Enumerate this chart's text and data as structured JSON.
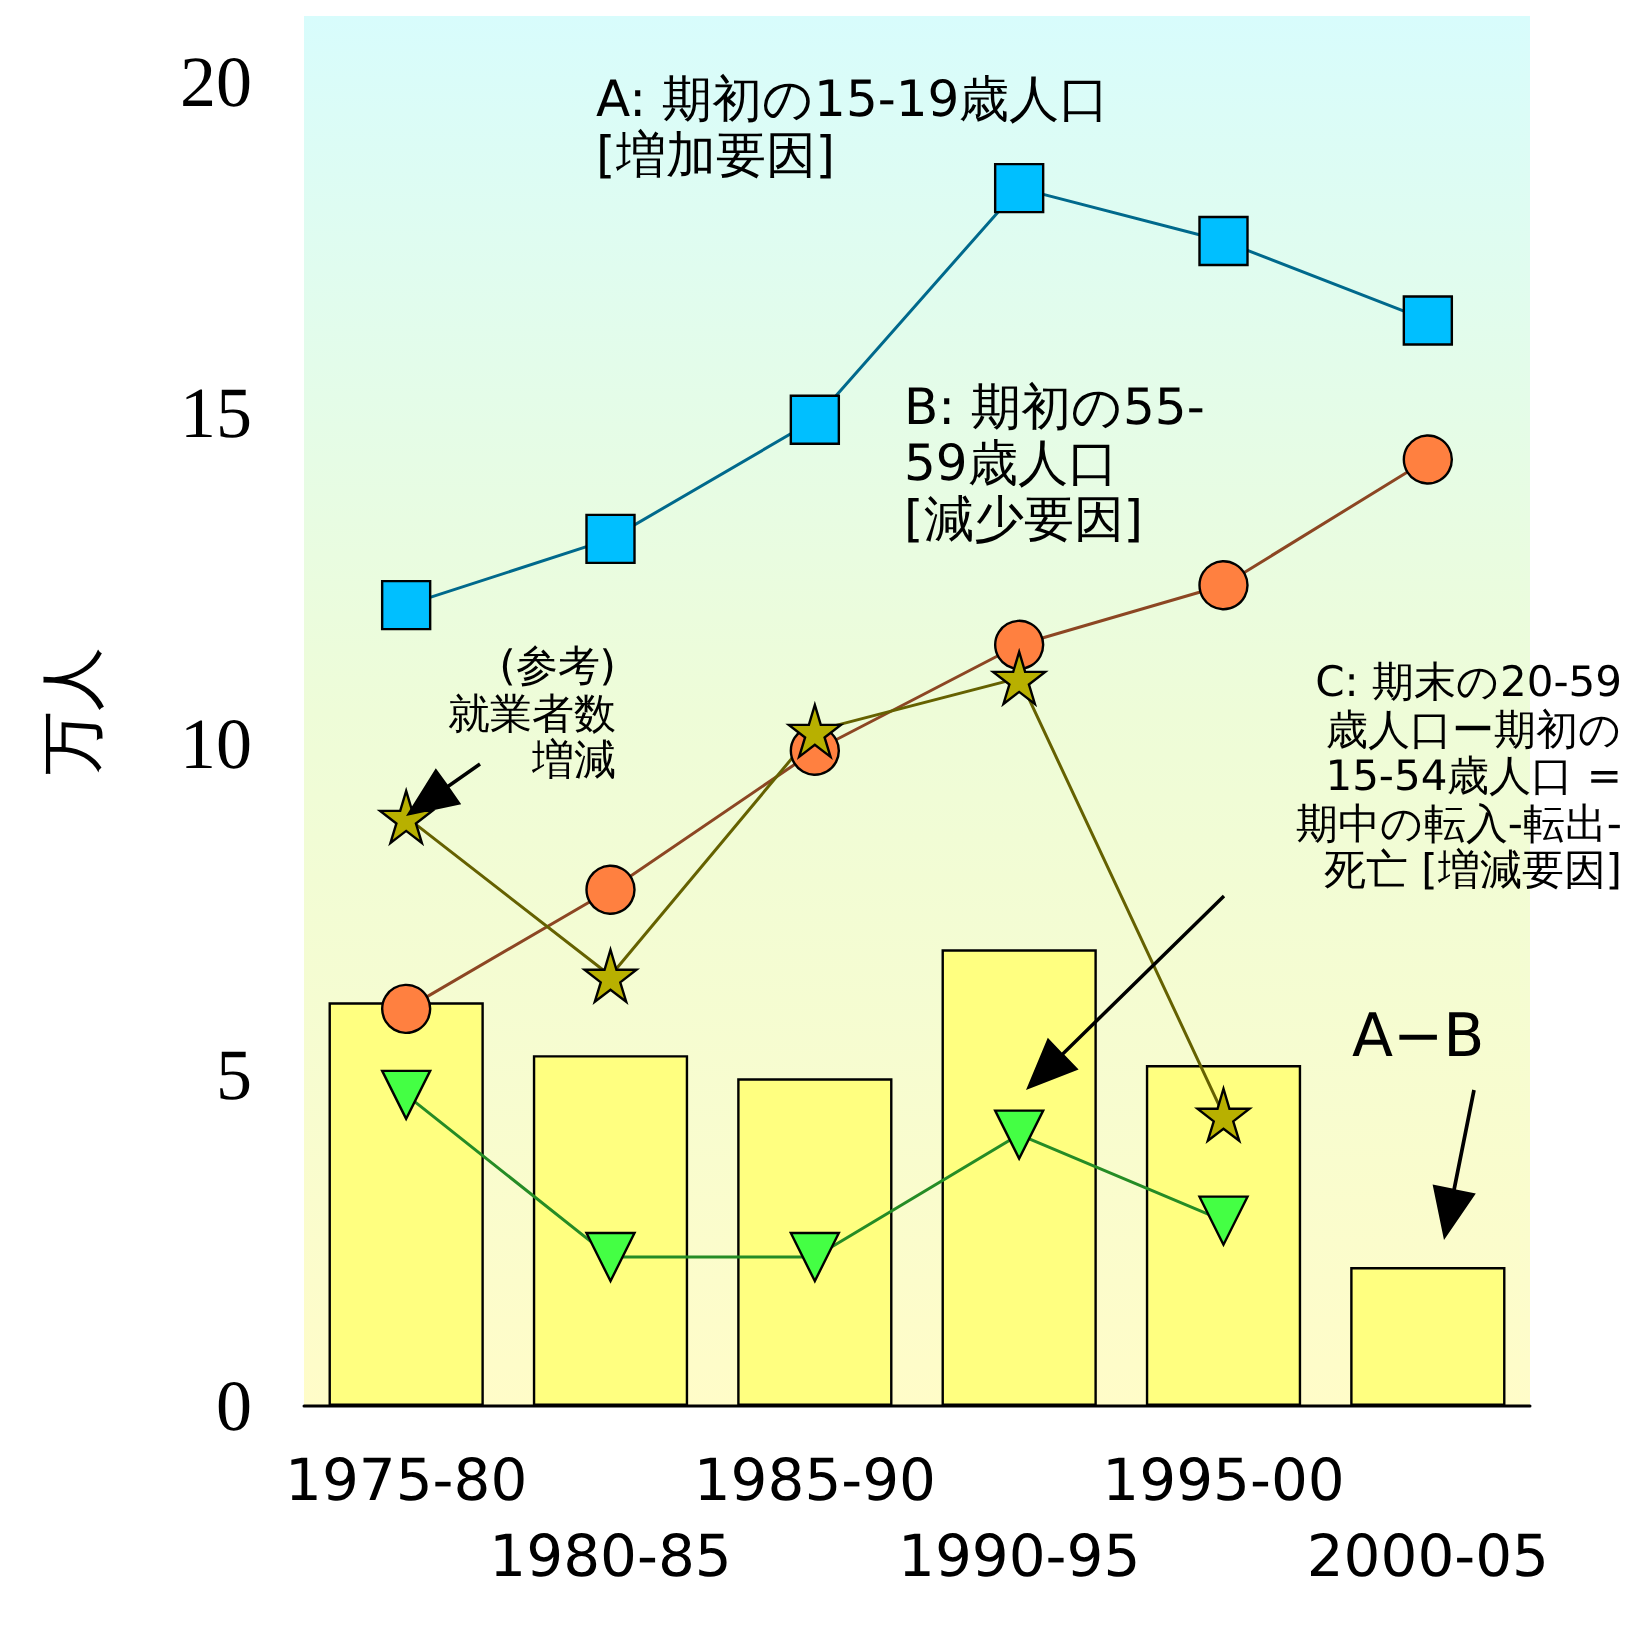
{
  "chart_data": {
    "type": "bar",
    "categories": [
      "1975-80",
      "1980-85",
      "1985-90",
      "1990-95",
      "1995-00",
      "2000-05"
    ],
    "ylabel": "万人",
    "ylim": [
      0,
      21
    ],
    "yticks": [
      0,
      5,
      10,
      15,
      20
    ],
    "grid": false,
    "series": [
      {
        "color": "#ffff80",
        "values": [
          6.1,
          5.3,
          4.95,
          6.9,
          5.15,
          2.1
        ]
      },
      {
        "type": "line",
        "color": "#00bfff",
        "marker": "square",
        "values": [
          12.1,
          13.1,
          14.9,
          18.4,
          17.6,
          16.4
        ]
      },
      {
        "type": "line",
        "color": "#ff8040",
        "marker": "circle",
        "values": [
          6.0,
          7.8,
          9.9,
          11.5,
          12.4,
          14.3
        ]
      },
      {
        "type": "line",
        "color": "#b8b000",
        "marker": "star",
        "values": [
          8.9,
          6.5,
          10.2,
          11.0,
          4.4,
          null
        ]
      },
      {
        "type": "line",
        "color": "#44ff44",
        "marker": "triangle",
        "values": [
          4.7,
          2.25,
          2.25,
          4.1,
          2.8,
          null
        ]
      }
    ],
    "annotations": [
      "A: 期初の15-19歳人口[増加要因]",
      "B: 期初の55-59歳人口[減少要因]",
      "(参考)就業者数増減",
      "C: 期末の20-59歳人口ー期初の15-54歳人口 =期中の転入-転出-死亡 [増減要因]",
      "A−B"
    ]
  }
}
